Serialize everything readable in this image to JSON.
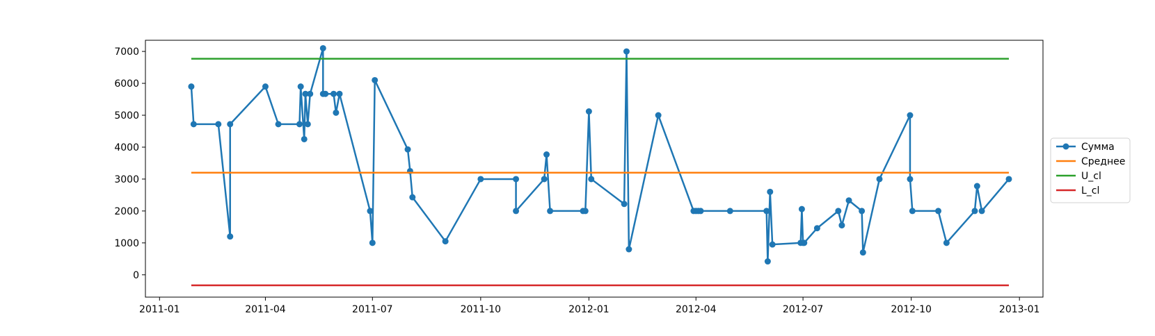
{
  "chart_data": {
    "type": "line",
    "title": "",
    "xlabel": "",
    "ylabel": "",
    "ylim": [
      -700,
      7350
    ],
    "xlim": [
      "2010-12-20",
      "2013-01-21"
    ],
    "grid": false,
    "legend_position": "right",
    "x_ticks": [
      "2011-01",
      "2011-04",
      "2011-07",
      "2011-10",
      "2012-01",
      "2012-04",
      "2012-07",
      "2012-10",
      "2013-01"
    ],
    "y_ticks": [
      0,
      1000,
      2000,
      3000,
      4000,
      5000,
      6000,
      7000
    ],
    "series": [
      {
        "name": "Сумма",
        "color": "#1f77b4",
        "markers": true,
        "points": [
          [
            "2011-01-28",
            5900
          ],
          [
            "2011-01-30",
            4720
          ],
          [
            "2011-02-20",
            4720
          ],
          [
            "2011-03-02",
            1200
          ],
          [
            "2011-03-02",
            4720
          ],
          [
            "2011-04-01",
            5900
          ],
          [
            "2011-04-12",
            4720
          ],
          [
            "2011-04-30",
            4720
          ],
          [
            "2011-05-01",
            5900
          ],
          [
            "2011-05-04",
            4250
          ],
          [
            "2011-05-05",
            5670
          ],
          [
            "2011-05-07",
            4720
          ],
          [
            "2011-05-09",
            5670
          ],
          [
            "2011-05-20",
            7100
          ],
          [
            "2011-05-20",
            5670
          ],
          [
            "2011-05-22",
            5670
          ],
          [
            "2011-05-29",
            5670
          ],
          [
            "2011-05-31",
            5080
          ],
          [
            "2011-06-03",
            5670
          ],
          [
            "2011-06-29",
            2000
          ],
          [
            "2011-07-01",
            1000
          ],
          [
            "2011-07-03",
            6100
          ],
          [
            "2011-07-31",
            3930
          ],
          [
            "2011-08-02",
            3250
          ],
          [
            "2011-08-04",
            2430
          ],
          [
            "2011-09-01",
            1050
          ],
          [
            "2011-10-01",
            3000
          ],
          [
            "2011-10-31",
            3000
          ],
          [
            "2011-10-31",
            2000
          ],
          [
            "2011-11-24",
            3000
          ],
          [
            "2011-11-26",
            3770
          ],
          [
            "2011-11-29",
            2000
          ],
          [
            "2011-12-27",
            2000
          ],
          [
            "2011-12-29",
            2000
          ],
          [
            "2012-01-01",
            5120
          ],
          [
            "2012-01-03",
            3000
          ],
          [
            "2012-01-31",
            2220
          ],
          [
            "2012-02-02",
            7000
          ],
          [
            "2012-02-04",
            800
          ],
          [
            "2012-02-29",
            5000
          ],
          [
            "2012-03-30",
            2000
          ],
          [
            "2012-04-01",
            2000
          ],
          [
            "2012-04-03",
            2000
          ],
          [
            "2012-04-05",
            2000
          ],
          [
            "2012-04-30",
            2000
          ],
          [
            "2012-05-31",
            2000
          ],
          [
            "2012-06-01",
            420
          ],
          [
            "2012-06-03",
            2600
          ],
          [
            "2012-06-05",
            950
          ],
          [
            "2012-06-29",
            1000
          ],
          [
            "2012-06-30",
            2060
          ],
          [
            "2012-07-01",
            1000
          ],
          [
            "2012-07-02",
            1000
          ],
          [
            "2012-07-13",
            1460
          ],
          [
            "2012-07-31",
            2000
          ],
          [
            "2012-08-03",
            1550
          ],
          [
            "2012-08-09",
            2330
          ],
          [
            "2012-08-20",
            2000
          ],
          [
            "2012-08-21",
            700
          ],
          [
            "2012-09-04",
            3000
          ],
          [
            "2012-09-30",
            5000
          ],
          [
            "2012-09-30",
            3000
          ],
          [
            "2012-10-02",
            2000
          ],
          [
            "2012-10-24",
            2000
          ],
          [
            "2012-10-31",
            1000
          ],
          [
            "2012-11-24",
            2000
          ],
          [
            "2012-11-26",
            2780
          ],
          [
            "2012-11-30",
            2000
          ],
          [
            "2012-12-23",
            3000
          ]
        ]
      },
      {
        "name": "Среднее",
        "color": "#ff7f0e",
        "markers": false,
        "points": [
          [
            "2011-01-28",
            3200
          ],
          [
            "2012-12-23",
            3200
          ]
        ]
      },
      {
        "name": "U_cl",
        "color": "#2ca02c",
        "markers": false,
        "points": [
          [
            "2011-01-28",
            6770
          ],
          [
            "2012-12-23",
            6770
          ]
        ]
      },
      {
        "name": "L_cl",
        "color": "#d62728",
        "markers": false,
        "points": [
          [
            "2011-01-28",
            -330
          ],
          [
            "2012-12-23",
            -330
          ]
        ]
      }
    ]
  }
}
